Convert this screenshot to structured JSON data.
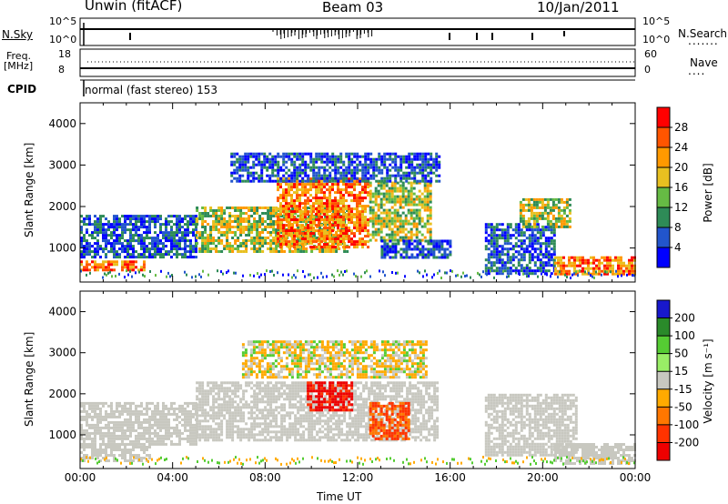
{
  "header": {
    "station": "Unwin (fitACF)",
    "beam": "Beam 03",
    "date": "10/Jan/2011"
  },
  "top_panels": {
    "nsky_label": "N.Sky",
    "nsky_ticks": [
      "10^5",
      "10^0"
    ],
    "nsearch_label": "N.Search",
    "nsearch_ticks": [
      "10^5",
      "10^0"
    ],
    "freq_label": "Freq.",
    "freq_unit": "[MHz]",
    "freq_ticks": [
      "18",
      "8"
    ],
    "nave_label": "Nave",
    "nave_ticks": [
      "60",
      "0"
    ],
    "cpid_label": "CPID",
    "cpid_text": "normal (fast stereo) 153"
  },
  "colors": {
    "power": [
      "#0000ff",
      "#2255cc",
      "#2e8b57",
      "#66bb44",
      "#e8c020",
      "#ff9900",
      "#ff5500",
      "#ff0000"
    ],
    "velocity": [
      "#1818cc",
      "#2a8a2a",
      "#55cc33",
      "#99ee66",
      "#c8c8c0",
      "#ffaa00",
      "#ff7700",
      "#ff3300",
      "#ee0000"
    ],
    "ground_scatter": "#c8c8c0"
  },
  "chart_data": [
    {
      "type": "heatmap",
      "name": "power-panel",
      "ylabel": "Slant Range [km]",
      "yticks": [
        "4000",
        "3000",
        "2000",
        "1000"
      ],
      "ylim": [
        180,
        4500
      ],
      "xlim": [
        0,
        24
      ],
      "colorbar_label": "Power [dB]",
      "colorbar_ticks": [
        "28",
        "24",
        "20",
        "16",
        "12",
        "8",
        "4"
      ],
      "features": [
        {
          "t0": 0.0,
          "t1": 2.8,
          "r0": 450,
          "r1": 700,
          "level": "high"
        },
        {
          "t0": 0.0,
          "t1": 5.0,
          "r0": 800,
          "r1": 1800,
          "level": "low"
        },
        {
          "t0": 5.0,
          "t1": 11.5,
          "r0": 900,
          "r1": 2000,
          "level": "mid"
        },
        {
          "t0": 8.5,
          "t1": 12.5,
          "r0": 1000,
          "r1": 2700,
          "level": "high"
        },
        {
          "t0": 12.5,
          "t1": 15.2,
          "r0": 1200,
          "r1": 2600,
          "level": "mid"
        },
        {
          "t0": 6.5,
          "t1": 15.5,
          "r0": 2600,
          "r1": 3300,
          "level": "low"
        },
        {
          "t0": 13.0,
          "t1": 16.0,
          "r0": 800,
          "r1": 1200,
          "level": "low"
        },
        {
          "t0": 17.5,
          "t1": 20.5,
          "r0": 400,
          "r1": 1600,
          "level": "low"
        },
        {
          "t0": 20.5,
          "t1": 24.0,
          "r0": 400,
          "r1": 800,
          "level": "high"
        },
        {
          "t0": 19.0,
          "t1": 21.2,
          "r0": 1500,
          "r1": 2200,
          "level": "mid"
        }
      ]
    },
    {
      "type": "heatmap",
      "name": "velocity-panel",
      "ylabel": "Slant Range [km]",
      "yticks": [
        "4000",
        "3000",
        "2000",
        "1000"
      ],
      "ylim": [
        180,
        4500
      ],
      "xlim": [
        0,
        24
      ],
      "xticks": [
        "00:00",
        "04:00",
        "08:00",
        "12:00",
        "16:00",
        "20:00",
        "00:00"
      ],
      "xlabel": "Time UT",
      "colorbar_label": "Velocity [m s⁻¹]",
      "colorbar_ticks": [
        "200",
        "100",
        "50",
        "15",
        "-15",
        "-50",
        "-100",
        "-200"
      ],
      "features": [
        {
          "t0": 0.0,
          "t1": 3.0,
          "r0": 400,
          "r1": 800,
          "v": "gs"
        },
        {
          "t0": 0.0,
          "t1": 5.0,
          "r0": 800,
          "r1": 1800,
          "v": "gs"
        },
        {
          "t0": 5.0,
          "t1": 15.5,
          "r0": 900,
          "r1": 2300,
          "v": "gs"
        },
        {
          "t0": 9.8,
          "t1": 11.8,
          "r0": 1600,
          "r1": 2300,
          "v": "neg200"
        },
        {
          "t0": 12.5,
          "t1": 14.2,
          "r0": 900,
          "r1": 1800,
          "v": "neg100"
        },
        {
          "t0": 7.0,
          "t1": 15.0,
          "r0": 2400,
          "r1": 3300,
          "v": "neg15"
        },
        {
          "t0": 17.5,
          "t1": 21.5,
          "r0": 500,
          "r1": 2000,
          "v": "gs"
        },
        {
          "t0": 20.5,
          "t1": 24.0,
          "r0": 300,
          "r1": 800,
          "v": "gs"
        }
      ]
    }
  ]
}
